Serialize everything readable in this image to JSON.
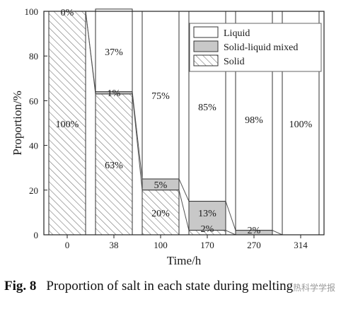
{
  "chart_data": {
    "type": "bar",
    "stacked": true,
    "categories": [
      "0",
      "38",
      "100",
      "170",
      "270",
      "314"
    ],
    "series": [
      {
        "name": "Solid",
        "values": [
          100,
          63,
          20,
          2,
          0,
          0
        ],
        "labels": [
          "100%",
          "63%",
          "20%",
          "2%",
          "",
          ""
        ]
      },
      {
        "name": "Solid-liquid mixed",
        "values": [
          0,
          1,
          5,
          13,
          2,
          0
        ],
        "labels": [
          "",
          "1%",
          "5%",
          "13%",
          "2%",
          ""
        ]
      },
      {
        "name": "Liquid",
        "values": [
          0,
          37,
          75,
          85,
          98,
          100
        ],
        "labels": [
          "0%",
          "37%",
          "75%",
          "85%",
          "98%",
          "100%"
        ]
      }
    ],
    "xlabel": "Time/h",
    "ylabel": "Proportion/%",
    "ylim": [
      0,
      100
    ],
    "yticks": [
      "0",
      "20",
      "40",
      "60",
      "80",
      "100"
    ],
    "legend": {
      "placement": "top-right",
      "entries": [
        "Liquid",
        "Solid-liquid mixed",
        "Solid"
      ]
    },
    "colors": {
      "liquid": "#ffffff",
      "mixed": "#c8c8c8",
      "solid_hatch": "#777777",
      "axis": "#222222",
      "connector": "#555555"
    },
    "grid": false
  },
  "caption": {
    "figure": "Fig. 8",
    "text": "Proportion of salt in each state during melting"
  },
  "watermark": "热科学学报"
}
